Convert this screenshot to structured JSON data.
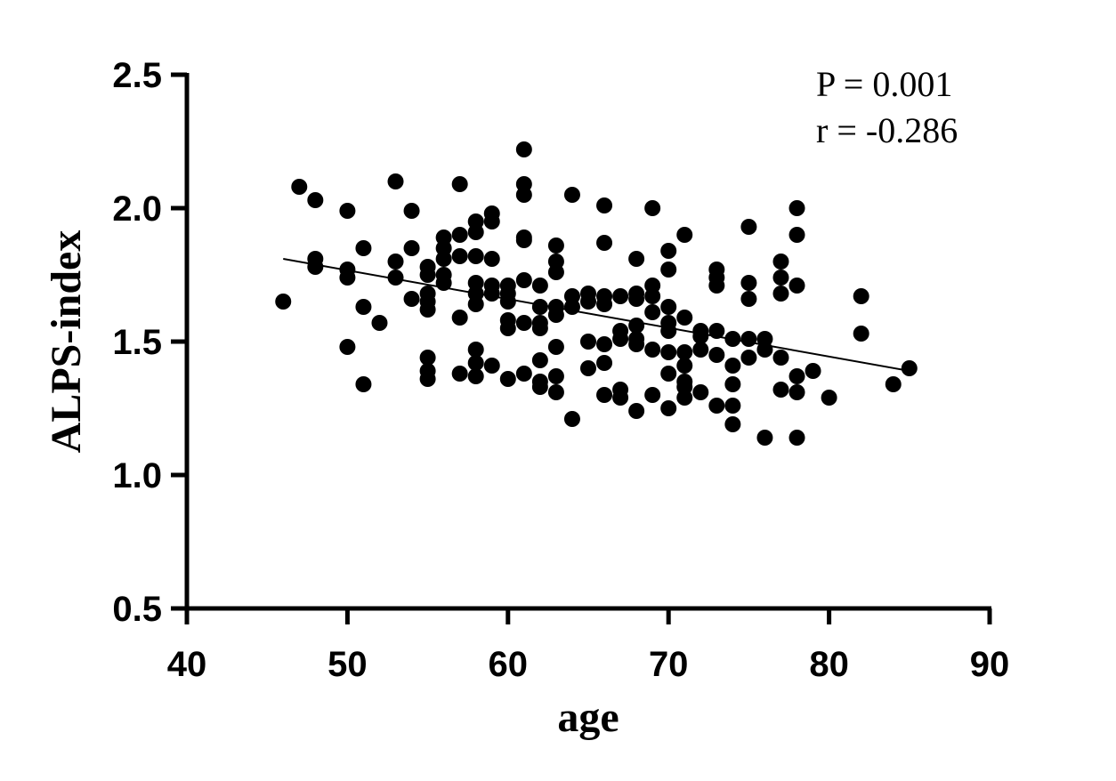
{
  "chart_data": {
    "type": "scatter",
    "title": "",
    "xlabel": "age",
    "ylabel": "ALPS-index",
    "xlim": [
      40,
      90
    ],
    "ylim": [
      0.5,
      2.5
    ],
    "x_ticks": [
      "40",
      "50",
      "60",
      "70",
      "80",
      "90"
    ],
    "y_ticks": [
      "0.5",
      "1.0",
      "1.5",
      "2.0",
      "2.5"
    ],
    "grid": false,
    "legend": "none",
    "marker_color": "#000000",
    "annotations": [
      "P = 0.001",
      "r = -0.286"
    ],
    "regression_line": {
      "x": [
        46,
        85
      ],
      "y": [
        1.81,
        1.39
      ]
    },
    "points": [
      [
        46,
        1.65
      ],
      [
        47,
        2.08
      ],
      [
        48,
        2.03
      ],
      [
        48,
        1.81
      ],
      [
        48,
        1.78
      ],
      [
        50,
        1.99
      ],
      [
        50,
        1.77
      ],
      [
        50,
        1.74
      ],
      [
        50,
        1.48
      ],
      [
        51,
        1.85
      ],
      [
        51,
        1.63
      ],
      [
        51,
        1.34
      ],
      [
        52,
        1.57
      ],
      [
        53,
        2.1
      ],
      [
        53,
        1.8
      ],
      [
        53,
        1.74
      ],
      [
        54,
        1.99
      ],
      [
        54,
        1.85
      ],
      [
        54,
        1.66
      ],
      [
        55,
        1.78
      ],
      [
        55,
        1.75
      ],
      [
        55,
        1.68
      ],
      [
        55,
        1.65
      ],
      [
        55,
        1.62
      ],
      [
        55,
        1.44
      ],
      [
        55,
        1.39
      ],
      [
        55,
        1.36
      ],
      [
        56,
        1.89
      ],
      [
        56,
        1.85
      ],
      [
        56,
        1.81
      ],
      [
        56,
        1.75
      ],
      [
        56,
        1.72
      ],
      [
        57,
        2.09
      ],
      [
        57,
        1.9
      ],
      [
        57,
        1.82
      ],
      [
        57,
        1.59
      ],
      [
        57,
        1.38
      ],
      [
        58,
        1.95
      ],
      [
        58,
        1.91
      ],
      [
        58,
        1.82
      ],
      [
        58,
        1.72
      ],
      [
        58,
        1.68
      ],
      [
        58,
        1.64
      ],
      [
        58,
        1.47
      ],
      [
        58,
        1.42
      ],
      [
        58,
        1.37
      ],
      [
        59,
        1.98
      ],
      [
        59,
        1.95
      ],
      [
        59,
        1.81
      ],
      [
        59,
        1.71
      ],
      [
        59,
        1.68
      ],
      [
        59,
        1.41
      ],
      [
        60,
        1.71
      ],
      [
        60,
        1.68
      ],
      [
        60,
        1.65
      ],
      [
        60,
        1.58
      ],
      [
        60,
        1.55
      ],
      [
        60,
        1.36
      ],
      [
        61,
        2.22
      ],
      [
        61,
        2.09
      ],
      [
        61,
        2.05
      ],
      [
        61,
        1.89
      ],
      [
        61,
        1.88
      ],
      [
        61,
        1.73
      ],
      [
        61,
        1.57
      ],
      [
        61,
        1.38
      ],
      [
        62,
        1.71
      ],
      [
        62,
        1.63
      ],
      [
        62,
        1.57
      ],
      [
        62,
        1.55
      ],
      [
        62,
        1.43
      ],
      [
        62,
        1.35
      ],
      [
        62,
        1.33
      ],
      [
        63,
        1.86
      ],
      [
        63,
        1.8
      ],
      [
        63,
        1.76
      ],
      [
        63,
        1.63
      ],
      [
        63,
        1.6
      ],
      [
        63,
        1.48
      ],
      [
        63,
        1.37
      ],
      [
        63,
        1.31
      ],
      [
        64,
        2.05
      ],
      [
        64,
        1.67
      ],
      [
        64,
        1.63
      ],
      [
        64,
        1.21
      ],
      [
        65,
        1.68
      ],
      [
        65,
        1.65
      ],
      [
        65,
        1.5
      ],
      [
        65,
        1.4
      ],
      [
        66,
        2.01
      ],
      [
        66,
        1.87
      ],
      [
        66,
        1.67
      ],
      [
        66,
        1.64
      ],
      [
        66,
        1.49
      ],
      [
        66,
        1.42
      ],
      [
        66,
        1.3
      ],
      [
        67,
        1.67
      ],
      [
        67,
        1.54
      ],
      [
        67,
        1.51
      ],
      [
        67,
        1.32
      ],
      [
        67,
        1.29
      ],
      [
        68,
        1.81
      ],
      [
        68,
        1.68
      ],
      [
        68,
        1.66
      ],
      [
        68,
        1.56
      ],
      [
        68,
        1.51
      ],
      [
        68,
        1.49
      ],
      [
        68,
        1.24
      ],
      [
        69,
        2.0
      ],
      [
        69,
        1.71
      ],
      [
        69,
        1.67
      ],
      [
        69,
        1.61
      ],
      [
        69,
        1.47
      ],
      [
        69,
        1.3
      ],
      [
        70,
        1.84
      ],
      [
        70,
        1.77
      ],
      [
        70,
        1.63
      ],
      [
        70,
        1.57
      ],
      [
        70,
        1.54
      ],
      [
        70,
        1.46
      ],
      [
        70,
        1.38
      ],
      [
        70,
        1.25
      ],
      [
        71,
        1.9
      ],
      [
        71,
        1.59
      ],
      [
        71,
        1.46
      ],
      [
        71,
        1.41
      ],
      [
        71,
        1.35
      ],
      [
        71,
        1.33
      ],
      [
        71,
        1.29
      ],
      [
        72,
        1.54
      ],
      [
        72,
        1.52
      ],
      [
        72,
        1.47
      ],
      [
        72,
        1.31
      ],
      [
        73,
        1.77
      ],
      [
        73,
        1.74
      ],
      [
        73,
        1.71
      ],
      [
        73,
        1.54
      ],
      [
        73,
        1.45
      ],
      [
        73,
        1.26
      ],
      [
        74,
        1.51
      ],
      [
        74,
        1.41
      ],
      [
        74,
        1.34
      ],
      [
        74,
        1.26
      ],
      [
        74,
        1.19
      ],
      [
        75,
        1.93
      ],
      [
        75,
        1.72
      ],
      [
        75,
        1.66
      ],
      [
        75,
        1.51
      ],
      [
        75,
        1.44
      ],
      [
        76,
        1.51
      ],
      [
        76,
        1.47
      ],
      [
        76,
        1.14
      ],
      [
        77,
        1.8
      ],
      [
        77,
        1.74
      ],
      [
        77,
        1.68
      ],
      [
        77,
        1.44
      ],
      [
        77,
        1.32
      ],
      [
        78,
        2.0
      ],
      [
        78,
        1.9
      ],
      [
        78,
        1.71
      ],
      [
        78,
        1.37
      ],
      [
        78,
        1.31
      ],
      [
        78,
        1.14
      ],
      [
        79,
        1.39
      ],
      [
        80,
        1.29
      ],
      [
        82,
        1.67
      ],
      [
        82,
        1.53
      ],
      [
        84,
        1.34
      ],
      [
        85,
        1.4
      ]
    ]
  }
}
